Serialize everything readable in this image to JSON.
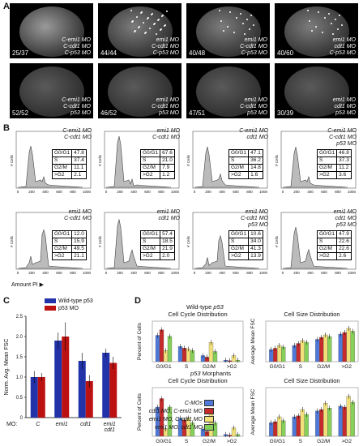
{
  "panels": {
    "a": "A",
    "b": "B",
    "c": "C",
    "d": "D"
  },
  "embryos": [
    {
      "count": "25/37",
      "l1": "C-emi1 MO",
      "l2": "C-cdt1 MO",
      "l3": "C-p53 MO"
    },
    {
      "count": "44/44",
      "l1": "emi1 MO",
      "l2": "C-cdt1 MO",
      "l3": "C-p53 MO"
    },
    {
      "count": "40/48",
      "l1": "emi1 MO",
      "l2": "C-cdt1 MO",
      "l3": "C-p53 MO"
    },
    {
      "count": "40/60",
      "l1": "emi1 MO",
      "l2": "cdt1 MO",
      "l3": "C-p53 MO"
    },
    {
      "count": "52/52",
      "l1": "C-emi1 MO",
      "l2": "C-cdt1 MO",
      "l3": "p53 MO"
    },
    {
      "count": "46/52",
      "l1": "emi1 MO",
      "l2": "C-cdt1 MO",
      "l3": "p53 MO"
    },
    {
      "count": "47/51",
      "l1": "emi1 MO",
      "l2": "C-cdt1 MO",
      "l3": "p53 MO"
    },
    {
      "count": "30/39",
      "l1": "emi1 MO",
      "l2": "cdt1 MO",
      "l3": "p53 MO"
    }
  ],
  "histograms": [
    {
      "l1": "C-emi1 MO",
      "l2": "C-cdt1 MO",
      "l3": "",
      "g0": "47.8",
      "s": "37.4",
      "g2": "11.1",
      "gt": "2.1"
    },
    {
      "l1": "emi1 MO",
      "l2": "C-cdt1 MO",
      "l3": "",
      "g0": "67.6",
      "s": "21.0",
      "g2": "7.9",
      "gt": "1.2"
    },
    {
      "l1": "C-emi1 MO",
      "l2": "cdt1 MO",
      "l3": "",
      "g0": "47.1",
      "s": "36.2",
      "g2": "14.8",
      "gt": "1.6"
    },
    {
      "l1": "C-emi1 MO",
      "l2": "C-cdt1 MO",
      "l3": "p53 MO",
      "g0": "46.8",
      "s": "37.3",
      "g2": "11.2",
      "gt": "3.6"
    },
    {
      "l1": "emi1 MO",
      "l2": "C-cdt1 MO",
      "l3": "",
      "g0": "12.0",
      "s": "15.9",
      "g2": "49.5",
      "gt": "21.1"
    },
    {
      "l1": "emi1 MO",
      "l2": "cdt1 MO",
      "l3": "",
      "g0": "57.4",
      "s": "18.5",
      "g2": "21.9",
      "gt": "2.0"
    },
    {
      "l1": "emi1 MO",
      "l2": "C-cdt1 MO",
      "l3": "p53 MO",
      "g0": "10.6",
      "s": "34.0",
      "g2": "41.3",
      "gt": "13.9"
    },
    {
      "l1": "emi1 MO",
      "l2": "cdt1 MO",
      "l3": "p53 MO",
      "g0": "47.9",
      "s": "22.6",
      "g2": "22.6",
      "gt": "2.6"
    }
  ],
  "stat_labels": {
    "g0": "G0/G1",
    "s": "S",
    "g2": "G2/M",
    "gt": ">G2"
  },
  "hist_axis": {
    "ylabel": "# Cells",
    "xlabel": "Amount PI",
    "ticks": [
      "0",
      "200",
      "400",
      "600",
      "800",
      "1000"
    ]
  },
  "chart_data": [
    {
      "type": "bar",
      "id": "C",
      "ylabel": "Norm. Avg. Mean FSC",
      "xlabel": "MO:",
      "categories": [
        "C",
        "emi1",
        "cdt1",
        "emi1 cdt1"
      ],
      "ylim": [
        0,
        2.5
      ],
      "yticks": [
        "0",
        "0.5",
        "1.0",
        "1.5",
        "2.0",
        "2.5"
      ],
      "series": [
        {
          "name": "Wild-type p53",
          "color": "#2233aa",
          "values": [
            1.0,
            1.9,
            1.4,
            1.6
          ],
          "err": [
            0.15,
            0.2,
            0.2,
            0.1
          ]
        },
        {
          "name": "p53 MO",
          "color": "#bb1111",
          "values": [
            1.0,
            2.0,
            0.9,
            1.35
          ],
          "err": [
            0.1,
            0.35,
            0.15,
            0.15
          ]
        }
      ]
    },
    {
      "type": "bar",
      "id": "D-wt-cycle",
      "group": "Wild-type p53",
      "title": "Cell Cycle Distribution",
      "ylabel": "Percent of Cells",
      "categories": [
        "G0/G1",
        "S",
        "G2/M",
        ">G2"
      ],
      "ylim": [
        0,
        80
      ],
      "series": [
        {
          "name": "C-MOs",
          "values": [
            52,
            30,
            12,
            3
          ]
        },
        {
          "name": "cdt1 MO, C-emi1 MO",
          "values": [
            63,
            27,
            9,
            2
          ]
        },
        {
          "name": "emi1 MO, C-cdt1 MO",
          "values": [
            22,
            25,
            38,
            12
          ]
        },
        {
          "name": "emi1 MO, cdt1 MO",
          "values": [
            50,
            22,
            20,
            3
          ]
        }
      ]
    },
    {
      "type": "bar",
      "id": "D-wt-size",
      "group": "Wild-type p53",
      "title": "Cell Size Distribution",
      "ylabel": "Average Mean FSC",
      "categories": [
        "G0/G1",
        "S",
        "G2/M",
        ">G2"
      ],
      "ylim": [
        0,
        100
      ],
      "series": [
        {
          "name": "C-MOs",
          "values": [
            30,
            40,
            55,
            68
          ]
        },
        {
          "name": "cdt1 MO, C-emi1 MO",
          "values": [
            33,
            45,
            60,
            72
          ]
        },
        {
          "name": "emi1 MO, C-cdt1 MO",
          "values": [
            40,
            52,
            66,
            82
          ]
        },
        {
          "name": "emi1 MO, cdt1 MO",
          "values": [
            36,
            48,
            62,
            75
          ]
        }
      ]
    },
    {
      "type": "bar",
      "id": "D-p53-cycle",
      "group": "p53 Morphants",
      "title": "Cell Cycle Distribution",
      "ylabel": "Percent of Cells",
      "categories": [
        "G0/G1",
        "S",
        "G2/M",
        ">G2"
      ],
      "ylim": [
        0,
        80
      ],
      "series": [
        {
          "name": "C-MOs",
          "values": [
            48,
            30,
            12,
            3
          ]
        },
        {
          "name": "cdt1 MO, C-emi1 MO",
          "values": [
            62,
            27,
            8,
            2
          ]
        },
        {
          "name": "emi1 MO, C-cdt1 MO",
          "values": [
            12,
            30,
            42,
            14
          ]
        },
        {
          "name": "emi1 MO, cdt1 MO",
          "values": [
            48,
            22,
            22,
            3
          ]
        }
      ]
    },
    {
      "type": "bar",
      "id": "D-p53-size",
      "group": "p53 Morphants",
      "title": "Cell Size Distribution",
      "ylabel": "Average Mean FSC",
      "categories": [
        "G0/G1",
        "S",
        "G2/M",
        ">G2"
      ],
      "ylim": [
        0,
        100
      ],
      "series": [
        {
          "name": "C-MOs",
          "values": [
            28,
            40,
            52,
            62
          ]
        },
        {
          "name": "cdt1 MO, C-emi1 MO",
          "values": [
            30,
            42,
            55,
            60
          ]
        },
        {
          "name": "emi1 MO, C-cdt1 MO",
          "values": [
            40,
            55,
            68,
            82
          ]
        },
        {
          "name": "emi1 MO, cdt1 MO",
          "values": [
            32,
            45,
            58,
            70
          ]
        }
      ]
    }
  ],
  "d_labels": {
    "wt": "Wild-type p53",
    "p53": "p53 Morphants"
  },
  "legend_colors": [
    "#4f79d8",
    "#c62b2b",
    "#f2e07a",
    "#86d05a"
  ]
}
